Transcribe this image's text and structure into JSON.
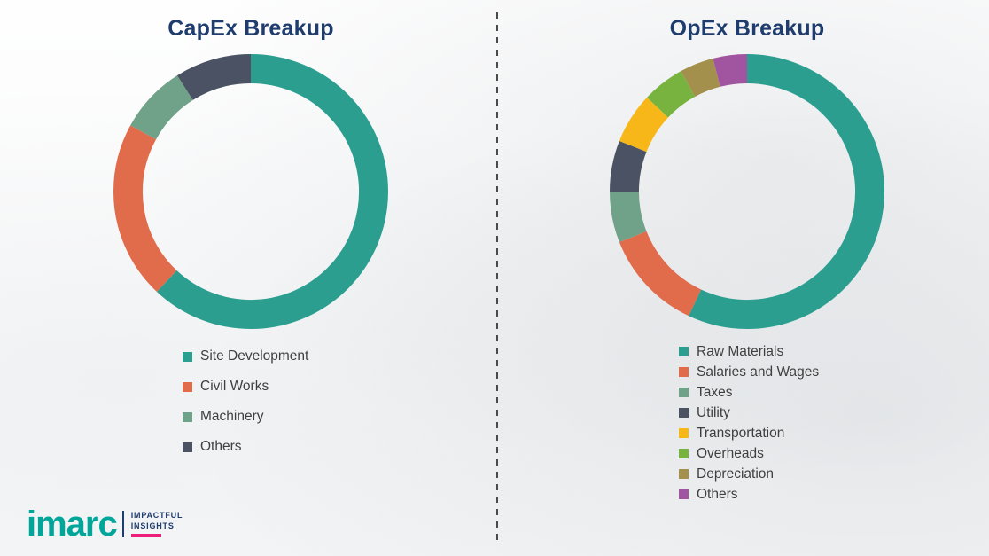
{
  "theme": {
    "title_color": "#1e3c6e",
    "legend_text_color": "#3f3f3f",
    "divider_color": "#4a4a4a",
    "background_color": "#ffffff"
  },
  "chart_data": [
    {
      "type": "donut",
      "title": "CapEx Breakup",
      "categories": [
        "Site Development",
        "Civil Works",
        "Machinery",
        "Others"
      ],
      "values": [
        62,
        21,
        8,
        9
      ],
      "unit": "percent",
      "colors": [
        "#2b9e90",
        "#e06c4c",
        "#6fa288",
        "#4a5264"
      ],
      "legend_position": "bottom",
      "start_angle": "top",
      "direction": "clockwise"
    },
    {
      "type": "donut",
      "title": "OpEx Breakup",
      "categories": [
        "Raw Materials",
        "Salaries and Wages",
        "Taxes",
        "Utility",
        "Transportation",
        "Overheads",
        "Depreciation",
        "Others"
      ],
      "values": [
        57,
        12,
        6,
        6,
        6,
        5,
        4,
        4
      ],
      "unit": "percent",
      "colors": [
        "#2b9e90",
        "#e06c4c",
        "#6fa288",
        "#4a5264",
        "#f7b718",
        "#79b33f",
        "#a3904c",
        "#a155a0"
      ],
      "legend_position": "bottom",
      "start_angle": "top",
      "direction": "clockwise"
    }
  ],
  "logo": {
    "wordmark": "imarc",
    "tagline_line1": "IMPACTFUL",
    "tagline_line2": "INSIGHTS",
    "wordmark_color": "#00a69a",
    "tagline_color": "#1e3c6e",
    "accent_color": "#ec1e79"
  }
}
